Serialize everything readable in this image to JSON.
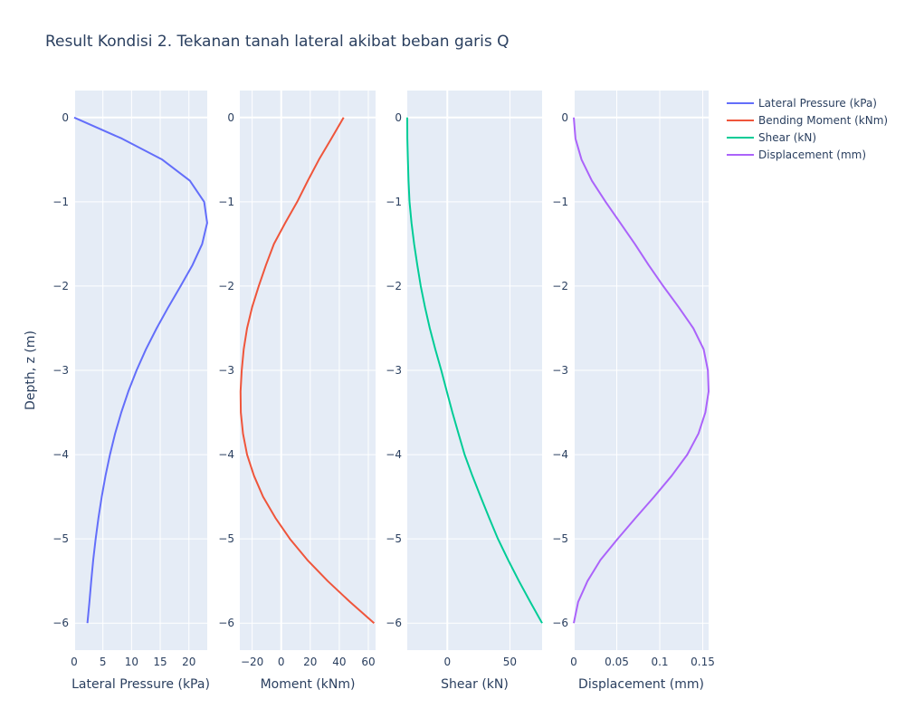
{
  "chart_data": {
    "type": "line",
    "title": "Result Kondisi 2. Tekanan tanah lateral akibat beban garis Q",
    "ylabel": "Depth, z (m)",
    "ylim": [
      -6.32,
      0.32
    ],
    "yticks": [
      0,
      -1,
      -2,
      -3,
      -4,
      -5,
      -6
    ],
    "ytick_labels": [
      "0",
      "−1",
      "−2",
      "−3",
      "−4",
      "−5",
      "−6"
    ],
    "grid": true,
    "legend_position": "top-right",
    "z": [
      0,
      -0.25,
      -0.5,
      -0.75,
      -1,
      -1.25,
      -1.5,
      -1.75,
      -2,
      -2.25,
      -2.5,
      -2.75,
      -3,
      -3.25,
      -3.5,
      -3.75,
      -4,
      -4.25,
      -4.5,
      -4.75,
      -5,
      -5.25,
      -5.5,
      -5.75,
      -6
    ],
    "subplots": [
      {
        "name": "Lateral Pressure (kPa)",
        "xlabel": "Lateral Pressure (kPa)",
        "color": "#636efa",
        "xlim": [
          0,
          23.2
        ],
        "xticks": [
          0,
          5,
          10,
          15,
          20
        ],
        "xtick_labels": [
          "0",
          "5",
          "10",
          "15",
          "20"
        ],
        "values": [
          0,
          8.34,
          15.35,
          20.17,
          22.66,
          23.18,
          22.31,
          20.62,
          18.56,
          16.42,
          14.38,
          12.52,
          10.87,
          9.44,
          8.2,
          7.14,
          6.23,
          5.46,
          4.8,
          4.23,
          3.74,
          3.32,
          2.96,
          2.65,
          2.3
        ]
      },
      {
        "name": "Bending Moment (kNm)",
        "xlabel": "Moment (kNm)",
        "color": "#ef553b",
        "xlim": [
          -28.5,
          65
        ],
        "xticks": [
          -20,
          0,
          20,
          40,
          60
        ],
        "xtick_labels": [
          "−20",
          "0",
          "20",
          "40",
          "60"
        ],
        "values": [
          43,
          34.5,
          26,
          18.3,
          11,
          2.8,
          -5,
          -10.5,
          -15.5,
          -20,
          -23.5,
          -25.8,
          -27.2,
          -28,
          -27.8,
          -26.3,
          -23.5,
          -18.8,
          -12.5,
          -4,
          6,
          18,
          32,
          47.5,
          64
        ]
      },
      {
        "name": "Shear (kN)",
        "xlabel": "Shear (kN)",
        "color": "#00cc96",
        "xlim": [
          -32,
          75.7
        ],
        "xticks": [
          0,
          50
        ],
        "xtick_labels": [
          "0",
          "50"
        ],
        "values": [
          -32,
          -31.9,
          -31.5,
          -31,
          -30.2,
          -28.6,
          -26.5,
          -24,
          -21.2,
          -17.8,
          -14,
          -9.6,
          -4.8,
          -0.4,
          4.1,
          8.9,
          13.8,
          20,
          26.6,
          33.4,
          40.4,
          48.6,
          57.2,
          66.3,
          75.7
        ]
      },
      {
        "name": "Displacement (mm)",
        "xlabel": "Displacement (mm)",
        "color": "#ab63fa",
        "xlim": [
          0,
          0.1568
        ],
        "xticks": [
          0,
          0.05,
          0.1,
          0.15
        ],
        "xtick_labels": [
          "0",
          "0.05",
          "0.1",
          "0.15"
        ],
        "values": [
          0,
          0.002,
          0.009,
          0.021,
          0.037,
          0.054,
          0.071,
          0.087,
          0.104,
          0.122,
          0.139,
          0.151,
          0.156,
          0.1568,
          0.153,
          0.145,
          0.132,
          0.114,
          0.0935,
          0.072,
          0.051,
          0.031,
          0.016,
          0.005,
          0
        ]
      }
    ]
  }
}
